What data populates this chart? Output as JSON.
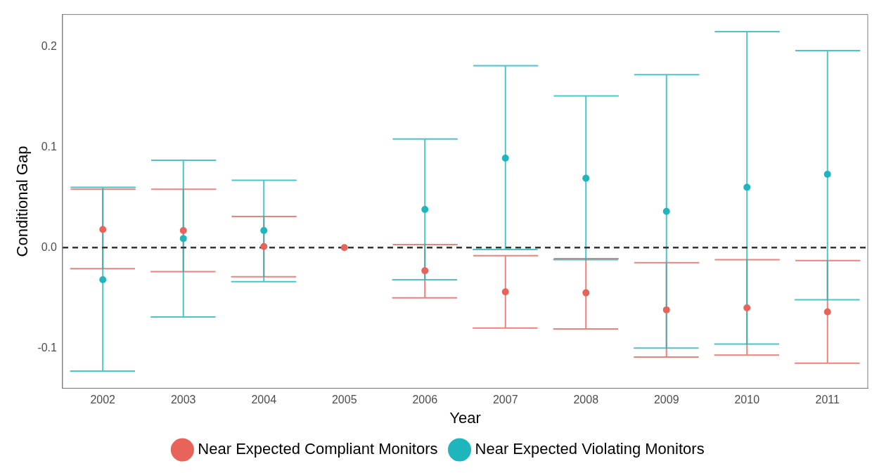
{
  "chart_data": {
    "type": "scatter",
    "xlabel": "Year",
    "ylabel": "Conditional Gap",
    "categories": [
      "2002",
      "2003",
      "2004",
      "2005",
      "2006",
      "2007",
      "2008",
      "2009",
      "2010",
      "2011"
    ],
    "series": [
      {
        "name": "Near Expected Compliant Monitors",
        "color": "#e8635a",
        "values": [
          0.018,
          0.017,
          0.001,
          0,
          -0.023,
          -0.044,
          -0.045,
          -0.062,
          -0.06,
          -0.064
        ],
        "errors": [
          [
            -0.021,
            0.058
          ],
          [
            -0.024,
            0.058
          ],
          [
            -0.029,
            0.031
          ],
          null,
          [
            -0.05,
            0.003
          ],
          [
            -0.08,
            -0.008
          ],
          [
            -0.081,
            -0.011
          ],
          [
            -0.109,
            -0.015
          ],
          [
            -0.107,
            -0.012
          ],
          [
            -0.115,
            -0.013
          ]
        ]
      },
      {
        "name": "Near Expected Violating Monitors",
        "color": "#1fb5bd",
        "values": [
          -0.032,
          0.009,
          0.017,
          null,
          0.038,
          0.089,
          0.069,
          0.036,
          0.06,
          0.073
        ],
        "errors": [
          [
            -0.123,
            0.06
          ],
          [
            -0.069,
            0.087
          ],
          [
            -0.034,
            0.067
          ],
          null,
          [
            -0.032,
            0.108
          ],
          [
            -0.002,
            0.181
          ],
          [
            -0.012,
            0.151
          ],
          [
            -0.1,
            0.172
          ],
          [
            -0.096,
            0.215
          ],
          [
            -0.052,
            0.196
          ]
        ]
      }
    ],
    "ylim": [
      -0.14,
      0.232
    ],
    "yticks": [
      {
        "value": -0.1,
        "label": "-0.1"
      },
      {
        "value": 0,
        "label": "0.0"
      },
      {
        "value": 0.1,
        "label": "0.1"
      },
      {
        "value": 0.2,
        "label": "0.2"
      }
    ],
    "grid": false,
    "legend": "bottom",
    "marker": "circle",
    "ref_lines": [
      {
        "axis": "y",
        "value": 0,
        "color": "#333333",
        "line_style": "dashed"
      }
    ]
  }
}
